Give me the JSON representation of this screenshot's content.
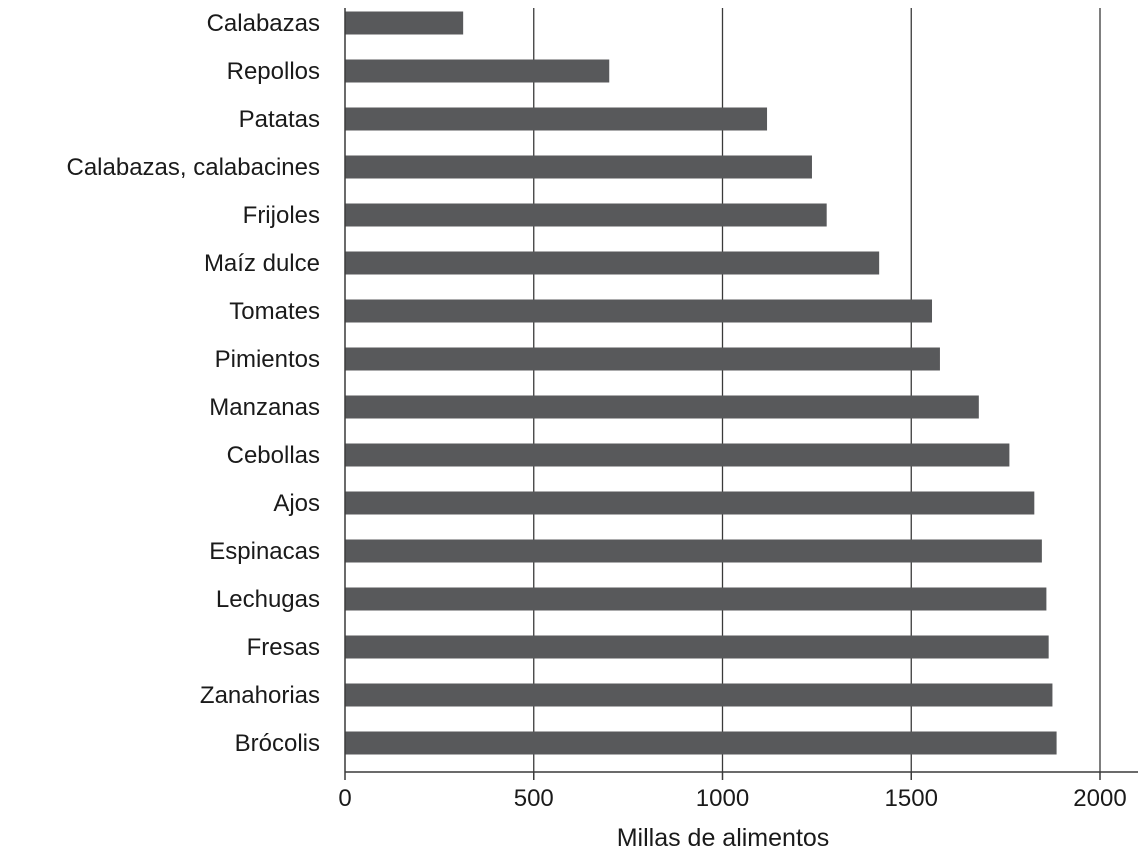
{
  "chart_data": {
    "type": "bar",
    "orientation": "horizontal",
    "categories": [
      "Calabazas",
      "Repollos",
      "Patatas",
      "Calabazas, calabacines",
      "Frijoles",
      "Maíz dulce",
      "Tomates",
      "Pimientos",
      "Manzanas",
      "Cebollas",
      "Ajos",
      "Espinacas",
      "Lechugas",
      "Fresas",
      "Zanahorias",
      "Brócolis"
    ],
    "values": [
      313,
      700,
      1118,
      1237,
      1276,
      1415,
      1555,
      1576,
      1679,
      1760,
      1826,
      1846,
      1858,
      1864,
      1874,
      1885
    ],
    "xlabel": "Millas de alimentos",
    "ylabel": "",
    "xlim": [
      0,
      2000
    ],
    "xticks": [
      0,
      500,
      1000,
      1500,
      2000
    ],
    "xtick_labels": [
      "0",
      "500",
      "1000",
      "1500",
      "2000"
    ],
    "grid": "vertical",
    "bar_color": "#58595b"
  }
}
